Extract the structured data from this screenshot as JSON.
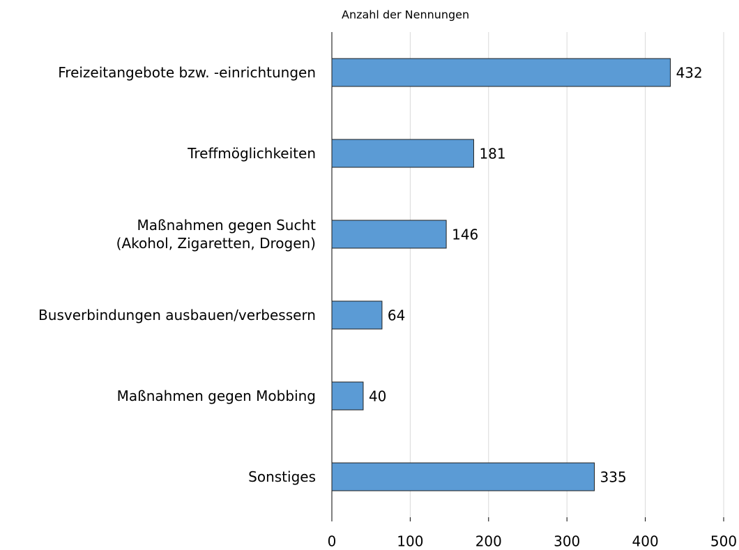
{
  "chart_data": {
    "type": "bar",
    "orientation": "horizontal",
    "x_label": "Anzahl der Nennungen",
    "categories": [
      "Freizeitangebote bzw. -einrichtungen",
      "Treffmöglichkeiten",
      "Maßnahmen gegen Sucht\n(Akohol, Zigaretten, Drogen)",
      "Busverbindungen ausbauen/verbessern",
      "Maßnahmen gegen Mobbing",
      "Sonstiges"
    ],
    "values": [
      432,
      181,
      146,
      64,
      40,
      335
    ],
    "color": "#5b9bd5",
    "xlim": [
      0,
      500
    ],
    "xticks": [
      0,
      100,
      200,
      300,
      400,
      500
    ],
    "grid": true
  }
}
